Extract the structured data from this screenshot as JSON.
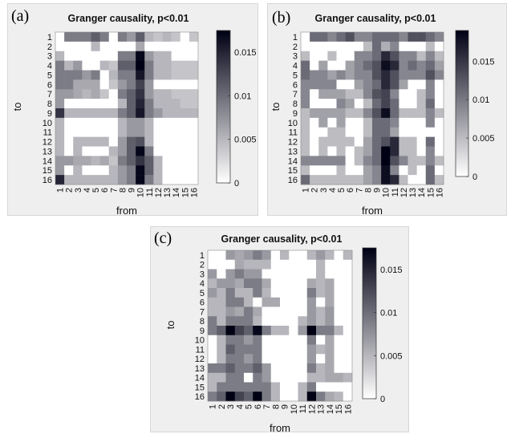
{
  "chart_data": [
    {
      "type": "heatmap",
      "panel_label": "(a)",
      "title": "Granger causality, p<0.01",
      "xlabel": "from",
      "ylabel": "to",
      "categories_x": [
        "1",
        "2",
        "3",
        "4",
        "5",
        "6",
        "7",
        "8",
        "9",
        "10",
        "11",
        "12",
        "13",
        "14",
        "15",
        "16"
      ],
      "categories_y": [
        "1",
        "2",
        "3",
        "4",
        "5",
        "6",
        "7",
        "8",
        "9",
        "10",
        "11",
        "12",
        "13",
        "14",
        "15",
        "16"
      ],
      "colorbar": {
        "min": 0,
        "max": 0.0175,
        "ticks": [
          "0.015",
          "0.01",
          "0.005",
          "0"
        ],
        "tick_values": [
          0.015,
          0.01,
          0.005,
          0
        ]
      },
      "values": [
        [
          0,
          0.009,
          0.009,
          0.009,
          0.011,
          0.009,
          0,
          0.009,
          0.007,
          0.011,
          0.005,
          0.004,
          0.005,
          0.004,
          0,
          0.004
        ],
        [
          0,
          0,
          0,
          0,
          0.005,
          0,
          0,
          0,
          0,
          0.006,
          0,
          0,
          0,
          0,
          0,
          0
        ],
        [
          0.005,
          0,
          0,
          0,
          0,
          0,
          0,
          0.009,
          0.009,
          0.017,
          0.007,
          0.005,
          0.005,
          0,
          0,
          0
        ],
        [
          0.009,
          0.005,
          0.007,
          0,
          0,
          0.005,
          0.004,
          0.011,
          0.011,
          0.018,
          0.009,
          0.005,
          0.005,
          0.004,
          0.004,
          0.004
        ],
        [
          0.009,
          0.009,
          0.009,
          0.007,
          0.009,
          0,
          0.005,
          0.009,
          0.009,
          0.016,
          0.009,
          0.005,
          0.005,
          0.004,
          0.004,
          0.004
        ],
        [
          0.009,
          0.009,
          0.006,
          0.006,
          0.006,
          0,
          0.004,
          0.007,
          0.009,
          0.013,
          0.007,
          0,
          0,
          0,
          0,
          0
        ],
        [
          0.007,
          0.007,
          0.006,
          0.005,
          0.006,
          0.004,
          0,
          0.009,
          0.011,
          0.014,
          0.007,
          0.005,
          0.005,
          0.004,
          0.004,
          0.004
        ],
        [
          0.007,
          0,
          0,
          0,
          0,
          0,
          0,
          0.005,
          0.011,
          0.015,
          0.009,
          0.005,
          0.005,
          0.005,
          0.004,
          0.004
        ],
        [
          0.014,
          0.005,
          0.005,
          0.005,
          0.005,
          0.005,
          0.005,
          0.009,
          0.011,
          0.016,
          0.009,
          0.007,
          0.005,
          0.005,
          0.005,
          0.005
        ],
        [
          0.005,
          0,
          0,
          0,
          0,
          0,
          0,
          0.005,
          0.007,
          0.007,
          0.005,
          0,
          0,
          0,
          0,
          0
        ],
        [
          0.005,
          0,
          0,
          0,
          0,
          0,
          0,
          0.005,
          0.007,
          0.007,
          0.005,
          0,
          0,
          0,
          0,
          0
        ],
        [
          0.005,
          0,
          0.005,
          0.005,
          0.005,
          0.005,
          0,
          0.007,
          0.011,
          0.012,
          0.005,
          0,
          0,
          0,
          0,
          0
        ],
        [
          0.005,
          0,
          0.005,
          0,
          0,
          0,
          0.005,
          0.007,
          0.011,
          0.017,
          0.009,
          0,
          0,
          0,
          0,
          0
        ],
        [
          0.007,
          0.007,
          0.006,
          0.006,
          0.005,
          0.006,
          0.004,
          0.009,
          0.011,
          0.014,
          0.011,
          0.005,
          0,
          0,
          0,
          0
        ],
        [
          0.007,
          0,
          0.005,
          0,
          0,
          0,
          0.005,
          0.007,
          0.009,
          0.017,
          0.011,
          0.005,
          0,
          0,
          0,
          0
        ],
        [
          0.015,
          0.005,
          0.005,
          0.005,
          0.005,
          0.005,
          0.005,
          0.007,
          0.009,
          0.017,
          0.009,
          0.005,
          0,
          0,
          0,
          0
        ]
      ]
    },
    {
      "type": "heatmap",
      "panel_label": "(b)",
      "title": "Granger causality, p<0.01",
      "xlabel": "from",
      "ylabel": "to",
      "categories_x": [
        "1",
        "2",
        "3",
        "4",
        "5",
        "6",
        "7",
        "8",
        "9",
        "10",
        "11",
        "12",
        "13",
        "14",
        "15",
        "16"
      ],
      "categories_y": [
        "1",
        "2",
        "3",
        "4",
        "5",
        "6",
        "7",
        "8",
        "9",
        "10",
        "11",
        "12",
        "13",
        "14",
        "15",
        "16"
      ],
      "colorbar": {
        "min": 0,
        "max": 0.019,
        "ticks": [
          "0.015",
          "0.01",
          "0.005",
          "0"
        ],
        "tick_values": [
          0.015,
          0.01,
          0.005,
          0
        ]
      },
      "values": [
        [
          0,
          0.011,
          0.011,
          0.009,
          0.011,
          0.013,
          0.009,
          0.009,
          0.011,
          0.011,
          0.011,
          0.009,
          0.013,
          0.013,
          0.011,
          0.009
        ],
        [
          0,
          0,
          0,
          0,
          0,
          0,
          0,
          0.005,
          0.011,
          0.006,
          0.009,
          0,
          0,
          0,
          0.005,
          0
        ],
        [
          0.005,
          0,
          0,
          0.005,
          0,
          0,
          0.009,
          0.009,
          0.011,
          0.016,
          0.013,
          0.009,
          0.009,
          0.005,
          0.009,
          0.005
        ],
        [
          0.011,
          0,
          0.007,
          0,
          0,
          0.007,
          0.009,
          0.011,
          0.013,
          0.018,
          0.016,
          0.009,
          0.011,
          0.009,
          0.011,
          0.007
        ],
        [
          0.011,
          0.009,
          0.009,
          0.007,
          0.009,
          0.007,
          0.009,
          0.009,
          0.013,
          0.016,
          0.013,
          0.009,
          0.009,
          0.009,
          0.013,
          0.009
        ],
        [
          0.009,
          0.009,
          0.009,
          0.009,
          0,
          0,
          0.007,
          0.009,
          0.011,
          0.016,
          0.013,
          0.007,
          0,
          0,
          0.009,
          0
        ],
        [
          0.009,
          0,
          0.007,
          0.007,
          0.007,
          0.005,
          0.005,
          0.009,
          0.013,
          0.014,
          0.009,
          0,
          0,
          0.005,
          0.009,
          0
        ],
        [
          0.009,
          0,
          0,
          0,
          0.009,
          0.007,
          0,
          0.005,
          0.011,
          0.014,
          0.011,
          0,
          0,
          0.005,
          0.011,
          0
        ],
        [
          0.005,
          0.007,
          0.007,
          0.007,
          0.007,
          0.005,
          0.005,
          0.009,
          0.013,
          0.018,
          0.011,
          0.005,
          0.005,
          0.005,
          0.009,
          0.005
        ],
        [
          0.005,
          0,
          0.007,
          0,
          0.007,
          0,
          0,
          0.005,
          0.011,
          0.011,
          0.009,
          0,
          0,
          0,
          0.009,
          0
        ],
        [
          0.005,
          0,
          0,
          0.005,
          0.005,
          0,
          0,
          0.005,
          0.011,
          0.011,
          0.007,
          0,
          0,
          0,
          0,
          0
        ],
        [
          0.005,
          0,
          0.005,
          0.005,
          0.005,
          0.005,
          0,
          0.007,
          0.011,
          0.013,
          0.016,
          0.005,
          0.005,
          0,
          0.011,
          0
        ],
        [
          0.005,
          0,
          0.005,
          0,
          0.005,
          0,
          0.005,
          0.007,
          0.011,
          0.019,
          0.016,
          0.005,
          0.005,
          0,
          0.009,
          0
        ],
        [
          0.009,
          0.009,
          0.009,
          0.009,
          0.009,
          0,
          0.005,
          0.009,
          0.011,
          0.019,
          0.013,
          0.009,
          0.005,
          0.005,
          0.009,
          0.005
        ],
        [
          0.005,
          0,
          0,
          0,
          0.005,
          0,
          0,
          0.007,
          0.009,
          0.018,
          0.009,
          0,
          0.005,
          0,
          0.011,
          0
        ],
        [
          0.011,
          0.005,
          0.005,
          0.005,
          0.005,
          0.005,
          0.005,
          0.007,
          0.009,
          0.018,
          0.016,
          0.005,
          0,
          0,
          0.011,
          0.005
        ]
      ]
    },
    {
      "type": "heatmap",
      "panel_label": "(c)",
      "title": "Granger causality, p<0.01",
      "xlabel": "from",
      "ylabel": "to",
      "categories_x": [
        "1",
        "2",
        "3",
        "4",
        "5",
        "6",
        "7",
        "8",
        "9",
        "10",
        "11",
        "12",
        "13",
        "14",
        "15",
        "16"
      ],
      "categories_y": [
        "1",
        "2",
        "3",
        "4",
        "5",
        "6",
        "7",
        "8",
        "9",
        "10",
        "11",
        "12",
        "13",
        "14",
        "15",
        "16"
      ],
      "colorbar": {
        "min": 0,
        "max": 0.0175,
        "ticks": [
          "0.015",
          "0.01",
          "0.005",
          "0"
        ],
        "tick_values": [
          0.015,
          0.01,
          0.005,
          0
        ]
      },
      "values": [
        [
          0,
          0,
          0.007,
          0.006,
          0.007,
          0.009,
          0.007,
          0,
          0.005,
          0,
          0,
          0.005,
          0.007,
          0.005,
          0,
          0.005
        ],
        [
          0,
          0,
          0,
          0.006,
          0.005,
          0.005,
          0.005,
          0,
          0,
          0,
          0,
          0,
          0.005,
          0,
          0,
          0
        ],
        [
          0.007,
          0,
          0.007,
          0.009,
          0.007,
          0.007,
          0,
          0,
          0,
          0,
          0,
          0,
          0.005,
          0,
          0,
          0
        ],
        [
          0.005,
          0.007,
          0.007,
          0.006,
          0.009,
          0.009,
          0.006,
          0,
          0,
          0,
          0,
          0.006,
          0.005,
          0.006,
          0,
          0
        ],
        [
          0.007,
          0.005,
          0.009,
          0.005,
          0.005,
          0.009,
          0.005,
          0,
          0,
          0,
          0,
          0.009,
          0.005,
          0.006,
          0,
          0
        ],
        [
          0.005,
          0.005,
          0.009,
          0.009,
          0.005,
          0,
          0.006,
          0.006,
          0,
          0,
          0,
          0.007,
          0,
          0.006,
          0,
          0
        ],
        [
          0.005,
          0.005,
          0.007,
          0.006,
          0.009,
          0.006,
          0,
          0,
          0,
          0,
          0,
          0.007,
          0.005,
          0.007,
          0,
          0
        ],
        [
          0.009,
          0.005,
          0.009,
          0.009,
          0.009,
          0.005,
          0,
          0,
          0,
          0,
          0.005,
          0.007,
          0.005,
          0.007,
          0,
          0
        ],
        [
          0.009,
          0.011,
          0.018,
          0.013,
          0.011,
          0.017,
          0.009,
          0.005,
          0.005,
          0,
          0.007,
          0.018,
          0.009,
          0.009,
          0.005,
          0
        ],
        [
          0,
          0.005,
          0.009,
          0.009,
          0.007,
          0.009,
          0,
          0,
          0,
          0,
          0,
          0.009,
          0,
          0.006,
          0,
          0
        ],
        [
          0,
          0.005,
          0.011,
          0.009,
          0.009,
          0.009,
          0,
          0,
          0,
          0,
          0,
          0.007,
          0.005,
          0.006,
          0,
          0
        ],
        [
          0,
          0.005,
          0.009,
          0.009,
          0.007,
          0.009,
          0,
          0,
          0,
          0,
          0,
          0.007,
          0,
          0.006,
          0,
          0
        ],
        [
          0.009,
          0.009,
          0.011,
          0.009,
          0.009,
          0.011,
          0.007,
          0,
          0,
          0,
          0,
          0.009,
          0.005,
          0.006,
          0,
          0
        ],
        [
          0.005,
          0.005,
          0.009,
          0.009,
          0,
          0.009,
          0.007,
          0,
          0,
          0,
          0,
          0.005,
          0.005,
          0.006,
          0.006,
          0.005
        ],
        [
          0.005,
          0.009,
          0.009,
          0.009,
          0.009,
          0.009,
          0.009,
          0.005,
          0,
          0,
          0.005,
          0.009,
          0,
          0,
          0,
          0
        ],
        [
          0.009,
          0.011,
          0.018,
          0.013,
          0.011,
          0.018,
          0.009,
          0.005,
          0,
          0,
          0.005,
          0.018,
          0.009,
          0.006,
          0.005,
          0
        ]
      ]
    }
  ]
}
